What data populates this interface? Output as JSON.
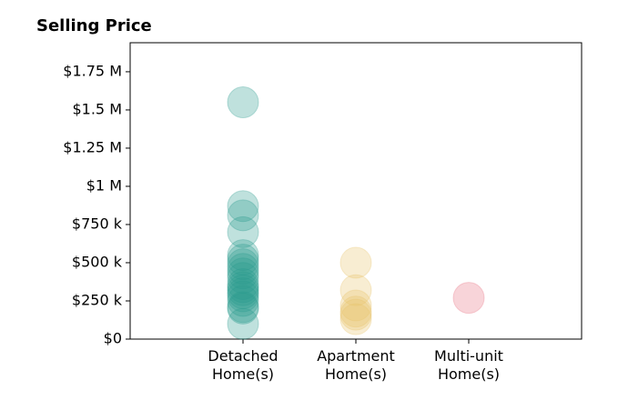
{
  "chart_data": {
    "type": "strip",
    "title": "Selling Price",
    "categories": [
      "Detached\nHome(s)",
      "Apartment\nHome(s)",
      "Multi-unit\nHome(s)"
    ],
    "points": [
      [
        1550000,
        870000,
        810000,
        700000,
        550000,
        520000,
        490000,
        460000,
        430000,
        400000,
        360000,
        340000,
        320000,
        300000,
        280000,
        250000,
        210000,
        200000,
        100000
      ],
      [
        500000,
        320000,
        220000,
        180000,
        160000,
        130000
      ],
      [
        270000
      ]
    ],
    "colors": [
      "#2a9d8f",
      "#e9c46a",
      "#e76f81"
    ],
    "opacity": 0.3,
    "ylim": [
      0,
      1940000
    ],
    "yticks": [
      {
        "value": 0,
        "label": "$0"
      },
      {
        "value": 250000,
        "label": "$250 k"
      },
      {
        "value": 500000,
        "label": "$500 k"
      },
      {
        "value": 750000,
        "label": "$750 k"
      },
      {
        "value": 1000000,
        "label": "$1 M"
      },
      {
        "value": 1250000,
        "label": "$1.25 M"
      },
      {
        "value": 1500000,
        "label": "$1.5 M"
      },
      {
        "value": 1750000,
        "label": "$1.75 M"
      }
    ]
  }
}
